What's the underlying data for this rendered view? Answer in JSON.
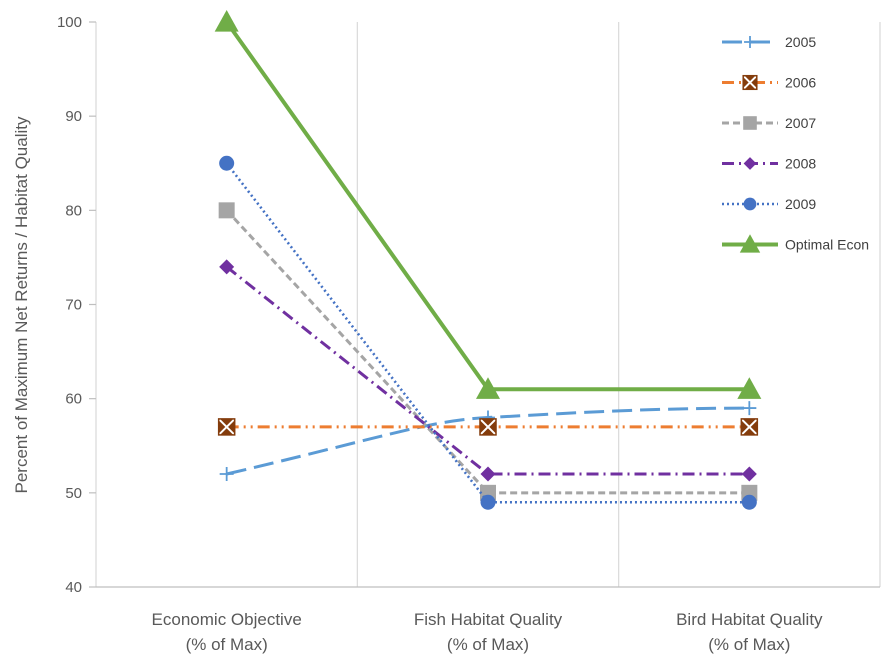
{
  "chart_data": {
    "type": "line",
    "title": "",
    "xlabel": "",
    "ylabel": "Percent of Maximum Net Returns / Habitat Quality",
    "ylim": [
      40,
      100
    ],
    "yticks": [
      40,
      50,
      60,
      70,
      80,
      90,
      100
    ],
    "categories": [
      [
        "Economic Objective",
        "(% of Max)"
      ],
      [
        "Fish Habitat Quality",
        "(% of Max)"
      ],
      [
        "Bird Habitat Quality",
        "(% of Max)"
      ]
    ],
    "grid": "vertical",
    "legend_position": "top-right",
    "series": [
      {
        "name": "2005",
        "values": [
          52,
          58,
          59
        ],
        "color": "#5B9BD5",
        "dash": "long-dash",
        "marker": "plus",
        "smooth": true
      },
      {
        "name": "2006",
        "values": [
          57,
          57,
          57
        ],
        "color": "#ED7D31",
        "dash": "dash-dot-dot",
        "marker": "boxed-x",
        "marker_fill": "#843C0C"
      },
      {
        "name": "2007",
        "values": [
          80,
          50,
          50
        ],
        "color": "#A5A5A5",
        "dash": "dash",
        "marker": "square"
      },
      {
        "name": "2008",
        "values": [
          74,
          52,
          52
        ],
        "color": "#7030A0",
        "dash": "dash-dot",
        "marker": "diamond"
      },
      {
        "name": "2009",
        "values": [
          85,
          49,
          49
        ],
        "color": "#4472C4",
        "dash": "dot",
        "marker": "circle"
      },
      {
        "name": "Optimal Econ",
        "values": [
          100,
          61,
          61
        ],
        "color": "#70AD47",
        "dash": "solid",
        "marker": "triangle"
      }
    ]
  }
}
